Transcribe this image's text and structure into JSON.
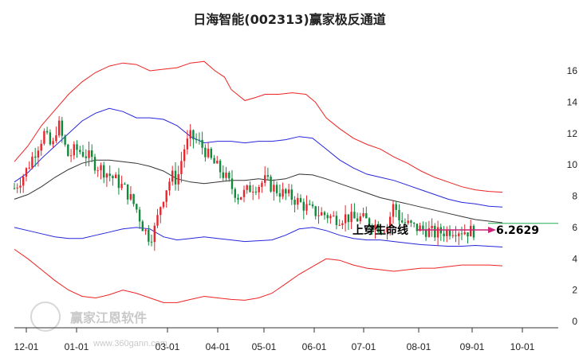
{
  "chart_data": {
    "type": "line",
    "title": "日海智能(002313)赢家极反通道",
    "x_ticks": [
      "12-01",
      "01-01",
      "03-01",
      "04-01",
      "05-01",
      "06-01",
      "07-01",
      "08-01",
      "09-01",
      "10-01"
    ],
    "y_ticks": [
      "0",
      "2",
      "4",
      "6",
      "8",
      "10",
      "12",
      "14",
      "16"
    ],
    "ylim": [
      0,
      16.5
    ],
    "annotation_text": "上穿生命线",
    "annotation_value": "6.2629",
    "watermark_text": "赢家江恩软件",
    "watermark_url": "www.360gann.com",
    "colors": {
      "up": "#e8262d",
      "down": "#118a3b",
      "outer_band": "#ee2222",
      "inner_band": "#2525dd",
      "midline": "#333333",
      "level_line": "#22aa55",
      "annotation_arrow": "#cc2277"
    },
    "level_line_value": 6.26,
    "upper_outer": [
      [
        0,
        10.2
      ],
      [
        10,
        11.2
      ],
      [
        20,
        12.5
      ],
      [
        30,
        13.5
      ],
      [
        40,
        14.5
      ],
      [
        50,
        15.3
      ],
      [
        60,
        15.9
      ],
      [
        70,
        16.3
      ],
      [
        80,
        16.5
      ],
      [
        90,
        16.4
      ],
      [
        100,
        16.0
      ],
      [
        110,
        16.1
      ],
      [
        120,
        16.2
      ],
      [
        130,
        16.5
      ],
      [
        140,
        16.6
      ],
      [
        148,
        16.0
      ],
      [
        155,
        15.6
      ],
      [
        160,
        14.8
      ],
      [
        170,
        14.1
      ],
      [
        178,
        14.3
      ],
      [
        185,
        14.5
      ],
      [
        195,
        14.5
      ],
      [
        205,
        14.6
      ],
      [
        215,
        14.5
      ],
      [
        222,
        14.0
      ],
      [
        230,
        13.0
      ],
      [
        240,
        12.3
      ],
      [
        250,
        11.7
      ],
      [
        260,
        11.3
      ],
      [
        270,
        11.0
      ],
      [
        280,
        10.5
      ],
      [
        290,
        10.1
      ],
      [
        300,
        9.6
      ],
      [
        310,
        9.2
      ],
      [
        320,
        8.9
      ],
      [
        330,
        8.6
      ],
      [
        340,
        8.4
      ],
      [
        350,
        8.3
      ],
      [
        360,
        8.25
      ]
    ],
    "upper_inner": [
      [
        0,
        8.9
      ],
      [
        10,
        9.5
      ],
      [
        20,
        10.4
      ],
      [
        30,
        11.2
      ],
      [
        40,
        12.0
      ],
      [
        50,
        12.8
      ],
      [
        60,
        13.3
      ],
      [
        70,
        13.6
      ],
      [
        80,
        13.4
      ],
      [
        90,
        13.0
      ],
      [
        100,
        13.0
      ],
      [
        110,
        12.9
      ],
      [
        120,
        12.5
      ],
      [
        130,
        11.8
      ],
      [
        140,
        11.4
      ],
      [
        150,
        11.5
      ],
      [
        160,
        11.5
      ],
      [
        170,
        11.4
      ],
      [
        180,
        11.5
      ],
      [
        190,
        11.5
      ],
      [
        200,
        11.6
      ],
      [
        210,
        11.8
      ],
      [
        220,
        11.7
      ],
      [
        230,
        11.0
      ],
      [
        240,
        10.3
      ],
      [
        250,
        9.8
      ],
      [
        260,
        9.4
      ],
      [
        270,
        9.2
      ],
      [
        280,
        9.0
      ],
      [
        290,
        8.7
      ],
      [
        300,
        8.4
      ],
      [
        310,
        8.1
      ],
      [
        320,
        7.8
      ],
      [
        330,
        7.6
      ],
      [
        340,
        7.5
      ],
      [
        350,
        7.35
      ],
      [
        360,
        7.3
      ]
    ],
    "midline": [
      [
        0,
        7.8
      ],
      [
        10,
        8.1
      ],
      [
        20,
        8.6
      ],
      [
        30,
        9.2
      ],
      [
        40,
        9.7
      ],
      [
        50,
        10.1
      ],
      [
        60,
        10.3
      ],
      [
        70,
        10.3
      ],
      [
        80,
        10.2
      ],
      [
        90,
        10.1
      ],
      [
        100,
        9.9
      ],
      [
        110,
        9.6
      ],
      [
        120,
        9.1
      ],
      [
        130,
        8.9
      ],
      [
        140,
        8.8
      ],
      [
        150,
        8.9
      ],
      [
        160,
        9.0
      ],
      [
        170,
        9.0
      ],
      [
        180,
        9.1
      ],
      [
        190,
        9.0
      ],
      [
        200,
        9.1
      ],
      [
        210,
        9.4
      ],
      [
        220,
        9.35
      ],
      [
        230,
        9.1
      ],
      [
        240,
        8.8
      ],
      [
        250,
        8.5
      ],
      [
        260,
        8.2
      ],
      [
        270,
        7.9
      ],
      [
        280,
        7.7
      ],
      [
        290,
        7.5
      ],
      [
        300,
        7.3
      ],
      [
        310,
        7.1
      ],
      [
        320,
        6.9
      ],
      [
        330,
        6.7
      ],
      [
        340,
        6.5
      ],
      [
        350,
        6.4
      ],
      [
        360,
        6.3
      ]
    ],
    "lower_inner": [
      [
        0,
        6.0
      ],
      [
        10,
        5.8
      ],
      [
        20,
        5.6
      ],
      [
        30,
        5.4
      ],
      [
        40,
        5.3
      ],
      [
        50,
        5.3
      ],
      [
        60,
        5.5
      ],
      [
        70,
        5.7
      ],
      [
        80,
        5.9
      ],
      [
        90,
        6.0
      ],
      [
        100,
        5.9
      ],
      [
        110,
        5.4
      ],
      [
        120,
        5.2
      ],
      [
        130,
        5.3
      ],
      [
        140,
        5.4
      ],
      [
        150,
        5.3
      ],
      [
        160,
        5.2
      ],
      [
        170,
        5.1
      ],
      [
        180,
        5.15
      ],
      [
        190,
        5.2
      ],
      [
        200,
        5.5
      ],
      [
        210,
        5.9
      ],
      [
        220,
        6.0
      ],
      [
        230,
        5.8
      ],
      [
        240,
        5.5
      ],
      [
        250,
        5.3
      ],
      [
        260,
        5.2
      ],
      [
        270,
        5.2
      ],
      [
        280,
        5.1
      ],
      [
        290,
        5.0
      ],
      [
        300,
        4.9
      ],
      [
        310,
        4.85
      ],
      [
        320,
        4.8
      ],
      [
        330,
        4.8
      ],
      [
        340,
        4.85
      ],
      [
        350,
        4.8
      ],
      [
        360,
        4.75
      ]
    ],
    "lower_outer": [
      [
        0,
        4.6
      ],
      [
        10,
        4.0
      ],
      [
        20,
        3.3
      ],
      [
        30,
        2.6
      ],
      [
        40,
        2.0
      ],
      [
        50,
        1.6
      ],
      [
        60,
        1.5
      ],
      [
        70,
        1.7
      ],
      [
        80,
        2.0
      ],
      [
        90,
        1.8
      ],
      [
        100,
        1.5
      ],
      [
        110,
        1.2
      ],
      [
        120,
        1.2
      ],
      [
        130,
        1.4
      ],
      [
        140,
        1.6
      ],
      [
        150,
        1.5
      ],
      [
        160,
        1.4
      ],
      [
        170,
        1.35
      ],
      [
        180,
        1.5
      ],
      [
        190,
        1.8
      ],
      [
        200,
        2.4
      ],
      [
        210,
        3.0
      ],
      [
        220,
        3.5
      ],
      [
        230,
        4.0
      ],
      [
        240,
        3.9
      ],
      [
        250,
        3.6
      ],
      [
        260,
        3.4
      ],
      [
        270,
        3.3
      ],
      [
        280,
        3.2
      ],
      [
        290,
        3.3
      ],
      [
        300,
        3.4
      ],
      [
        310,
        3.4
      ],
      [
        320,
        3.5
      ],
      [
        330,
        3.6
      ],
      [
        340,
        3.6
      ],
      [
        350,
        3.6
      ],
      [
        360,
        3.55
      ]
    ]
  }
}
